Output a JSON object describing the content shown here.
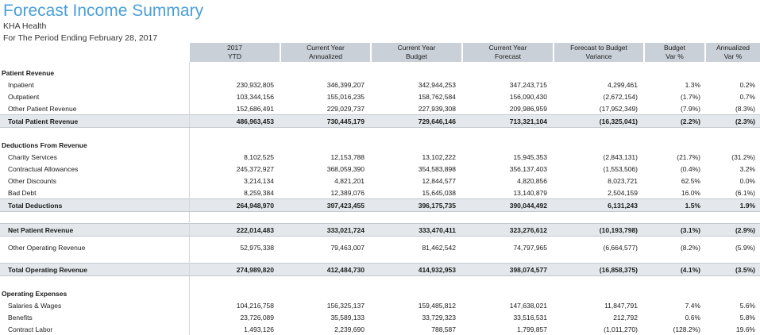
{
  "report": {
    "title": "Forecast Income Summary",
    "org": "KHA Health",
    "period": "For The Period Ending February 28, 2017"
  },
  "columns": [
    [
      "2017",
      "YTD"
    ],
    [
      "Current Year",
      "Annualized"
    ],
    [
      "Current Year",
      "Budget"
    ],
    [
      "Current Year",
      "Forecast"
    ],
    [
      "Forecast to Budget",
      "Variance"
    ],
    [
      "Budget",
      "Var %"
    ],
    [
      "Annualized",
      "Var %"
    ]
  ],
  "rows": {
    "patient_revenue": "Patient Revenue",
    "inpatient": {
      "label": "Inpatient",
      "v": [
        "230,932,805",
        "346,399,207",
        "342,944,253",
        "347,243,715",
        "4,299,461",
        "1.3%",
        "0.2%"
      ]
    },
    "outpatient": {
      "label": "Outpatient",
      "v": [
        "103,344,156",
        "155,016,235",
        "158,762,584",
        "156,090,430",
        "(2,672,154)",
        "(1.7%)",
        "0.7%"
      ]
    },
    "other_patient": {
      "label": "Other Patient Revenue",
      "v": [
        "152,686,491",
        "229,029,737",
        "227,939,308",
        "209,986,959",
        "(17,952,349)",
        "(7.9%)",
        "(8.3%)"
      ]
    },
    "total_patient": {
      "label": "Total Patient Revenue",
      "v": [
        "486,963,453",
        "730,445,179",
        "729,646,146",
        "713,321,104",
        "(16,325,041)",
        "(2.2%)",
        "(2.3%)"
      ]
    },
    "deductions": "Deductions From Revenue",
    "charity": {
      "label": "Charity Services",
      "v": [
        "8,102,525",
        "12,153,788",
        "13,102,222",
        "15,945,353",
        "(2,843,131)",
        "(21.7%)",
        "(31.2%)"
      ]
    },
    "contractual": {
      "label": "Contractual Allowances",
      "v": [
        "245,372,927",
        "368,059,390",
        "354,583,898",
        "356,137,403",
        "(1,553,506)",
        "(0.4%)",
        "3.2%"
      ]
    },
    "discounts": {
      "label": "Other Discounts",
      "v": [
        "3,214,134",
        "4,821,201",
        "12,844,577",
        "4,820,856",
        "8,023,721",
        "62.5%",
        "0.0%"
      ]
    },
    "bad_debt": {
      "label": "Bad Debt",
      "v": [
        "8,259,384",
        "12,389,076",
        "15,645,038",
        "13,140,879",
        "2,504,159",
        "16.0%",
        "(6.1%)"
      ]
    },
    "total_deductions": {
      "label": "Total Deductions",
      "v": [
        "264,948,970",
        "397,423,455",
        "396,175,735",
        "390,044,492",
        "6,131,243",
        "1.5%",
        "1.9%"
      ]
    },
    "net_patient": {
      "label": "Net Patient Revenue",
      "v": [
        "222,014,483",
        "333,021,724",
        "333,470,411",
        "323,276,612",
        "(10,193,798)",
        "(3.1%)",
        "(2.9%)"
      ]
    },
    "other_operating": {
      "label": "Other Operating Revenue",
      "v": [
        "52,975,338",
        "79,463,007",
        "81,462,542",
        "74,797,965",
        "(6,664,577)",
        "(8.2%)",
        "(5.9%)"
      ]
    },
    "total_operating": {
      "label": "Total Operating Revenue",
      "v": [
        "274,989,820",
        "412,484,730",
        "414,932,953",
        "398,074,577",
        "(16,858,375)",
        "(4.1%)",
        "(3.5%)"
      ]
    },
    "operating_expenses": "Operating Expenses",
    "salaries": {
      "label": "Salaries & Wages",
      "v": [
        "104,216,758",
        "156,325,137",
        "159,485,812",
        "147,638,021",
        "11,847,791",
        "7.4%",
        "5.6%"
      ]
    },
    "benefits": {
      "label": "Benefits",
      "v": [
        "23,726,089",
        "35,589,133",
        "33,729,323",
        "33,516,531",
        "212,792",
        "0.6%",
        "5.8%"
      ]
    },
    "contract_labor": {
      "label": "Contract Labor",
      "v": [
        "1,493,126",
        "2,239,690",
        "788,587",
        "1,799,857",
        "(1,011,270)",
        "(128.2%)",
        "19.6%"
      ]
    }
  }
}
